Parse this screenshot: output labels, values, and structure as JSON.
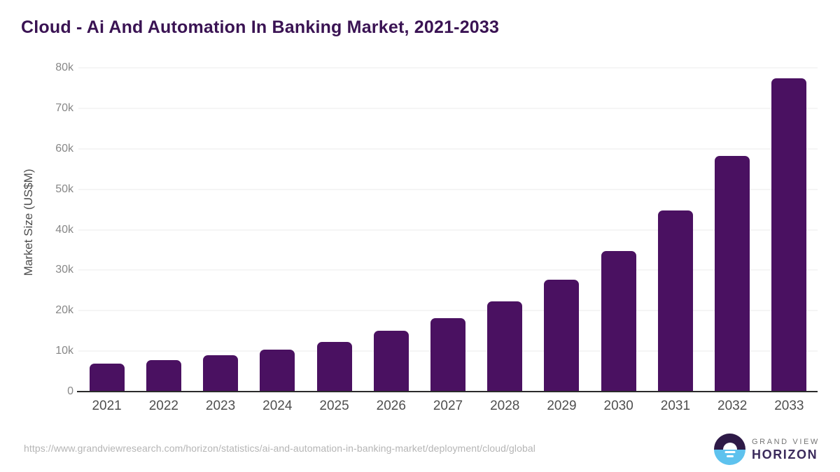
{
  "title": "Cloud - Ai And Automation In Banking Market, 2021-2033",
  "chart_data": {
    "type": "bar",
    "title": "Cloud - Ai And Automation In Banking Market, 2021-2033",
    "categories": [
      "2021",
      "2022",
      "2023",
      "2024",
      "2025",
      "2026",
      "2027",
      "2028",
      "2029",
      "2030",
      "2031",
      "2032",
      "2033"
    ],
    "values": [
      6900,
      7800,
      9000,
      10400,
      12300,
      15000,
      18100,
      22300,
      27700,
      34800,
      44700,
      58300,
      77400
    ],
    "xlabel": "",
    "ylabel": "Market Size (US$M)",
    "ylim": [
      0,
      80000
    ],
    "yticks": [
      {
        "value": 0,
        "label": "0"
      },
      {
        "value": 10000,
        "label": "10k"
      },
      {
        "value": 20000,
        "label": "20k"
      },
      {
        "value": 30000,
        "label": "30k"
      },
      {
        "value": 40000,
        "label": "40k"
      },
      {
        "value": 50000,
        "label": "50k"
      },
      {
        "value": 60000,
        "label": "60k"
      },
      {
        "value": 70000,
        "label": "70k"
      },
      {
        "value": 80000,
        "label": "80k"
      }
    ],
    "grid": true,
    "legend": "none",
    "bar_color": "#4a1161"
  },
  "colors": {
    "bar": "#4a1161",
    "title": "#3a1353",
    "gridline": "#ebebeb",
    "axis_line": "#2b2b2b",
    "x_tick_text": "#4f4f4f",
    "y_tick_text": "#878787",
    "source_text": "#b5b5b5",
    "logo_purple": "#2e1a47",
    "logo_blue": "#5ec2ee",
    "logo_product_text": "#3b2b5c"
  },
  "footer": {
    "source_url": "https://www.grandviewresearch.com/horizon/statistics/ai-and-automation-in-banking-market/deployment/cloud/global",
    "logo": {
      "brand_top": "GRAND VIEW",
      "brand_bottom": "HORIZON"
    }
  }
}
